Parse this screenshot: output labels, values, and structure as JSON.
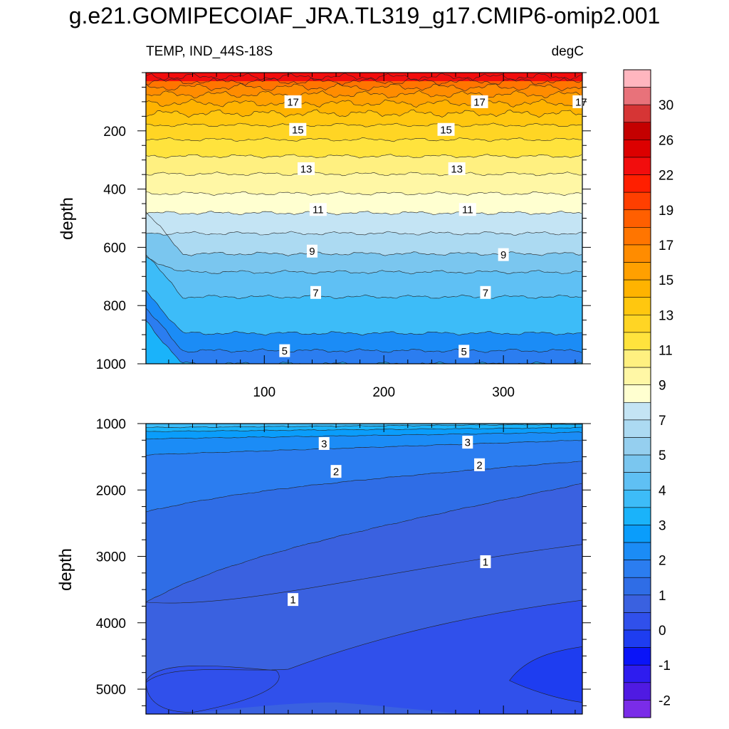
{
  "page_title": "g.e21.GOMIPECOIAF_JRA.TL319_g17.CMIP6-omip2.001",
  "subtitle_left": "TEMP, IND_44S-18S",
  "subtitle_right": "degC",
  "chart_data": [
    {
      "type": "contour",
      "panel": "upper",
      "xlabel": "",
      "ylabel": "depth",
      "xlim": [
        1,
        366
      ],
      "ylim": [
        1000,
        0
      ],
      "x_ticks": [
        100,
        200,
        300
      ],
      "y_ticks": [
        200,
        400,
        600,
        800,
        1000
      ],
      "contour_interval": 1,
      "contour_depths": {
        "4": 1000,
        "5": 955,
        "6": 895,
        "7": 770,
        "8": 685,
        "9": 622,
        "10": 552,
        "11": 482,
        "12": 415,
        "13": 348,
        "14": 287,
        "15": 230,
        "16": 180,
        "17": 140,
        "18": 105,
        "19": 75,
        "20": 50,
        "21": 30,
        "22": 15
      },
      "contour_labels": [
        {
          "value": "17",
          "x": 124,
          "y": 100
        },
        {
          "value": "17",
          "x": 280,
          "y": 100
        },
        {
          "value": "17",
          "x": 365,
          "y": 100
        },
        {
          "value": "15",
          "x": 128,
          "y": 195
        },
        {
          "value": "15",
          "x": 252,
          "y": 195
        },
        {
          "value": "13",
          "x": 135,
          "y": 330
        },
        {
          "value": "13",
          "x": 261,
          "y": 330
        },
        {
          "value": "11",
          "x": 145,
          "y": 470
        },
        {
          "value": "11",
          "x": 270,
          "y": 470
        },
        {
          "value": "9",
          "x": 140,
          "y": 613
        },
        {
          "value": "9",
          "x": 300,
          "y": 625
        },
        {
          "value": "7",
          "x": 143,
          "y": 755
        },
        {
          "value": "7",
          "x": 285,
          "y": 755
        },
        {
          "value": "5",
          "x": 117,
          "y": 955
        },
        {
          "value": "5",
          "x": 267,
          "y": 957
        }
      ]
    },
    {
      "type": "contour",
      "panel": "lower",
      "xlabel": "",
      "ylabel": "depth",
      "xlim": [
        1,
        366
      ],
      "ylim": [
        5375,
        1000
      ],
      "x_ticks": [
        100,
        200,
        300
      ],
      "y_ticks": [
        1000,
        2000,
        3000,
        4000,
        5000
      ],
      "contour_interval": 0.5,
      "contour_labels": [
        {
          "value": "3",
          "x": 150,
          "y": 1300
        },
        {
          "value": "3",
          "x": 270,
          "y": 1280
        },
        {
          "value": "2",
          "x": 160,
          "y": 1720
        },
        {
          "value": "2",
          "x": 280,
          "y": 1620
        },
        {
          "value": "1",
          "x": 124,
          "y": 3650
        },
        {
          "value": "1",
          "x": 285,
          "y": 3080
        }
      ]
    }
  ],
  "colorbar": {
    "labels": [
      "30",
      "26",
      "22",
      "19",
      "17",
      "15",
      "13",
      "11",
      "9",
      "7",
      "5",
      "4",
      "3",
      "2",
      "1",
      "0",
      "-1",
      "-2"
    ],
    "colors": [
      "#ffb6bf",
      "#e8727a",
      "#d63535",
      "#c40000",
      "#dc0000",
      "#f20d0d",
      "#ff1f00",
      "#ff3f00",
      "#ff5f00",
      "#ff7500",
      "#ff8c00",
      "#ffa000",
      "#ffb300",
      "#ffc70f",
      "#ffd524",
      "#ffe33d",
      "#fff080",
      "#fff7a5",
      "#ffffd0",
      "#c4e4f4",
      "#acdaf2",
      "#95cfef",
      "#7ac6ef",
      "#5fc0f4",
      "#3dbcf8",
      "#1ab3fa",
      "#0a9dfb",
      "#1b8cf6",
      "#2b7df0",
      "#2f6de6",
      "#3a61e0",
      "#3050eb",
      "#1e3df0",
      "#0a14f8",
      "#2e1cef",
      "#4f1ae2",
      "#7a2ce8"
    ]
  }
}
